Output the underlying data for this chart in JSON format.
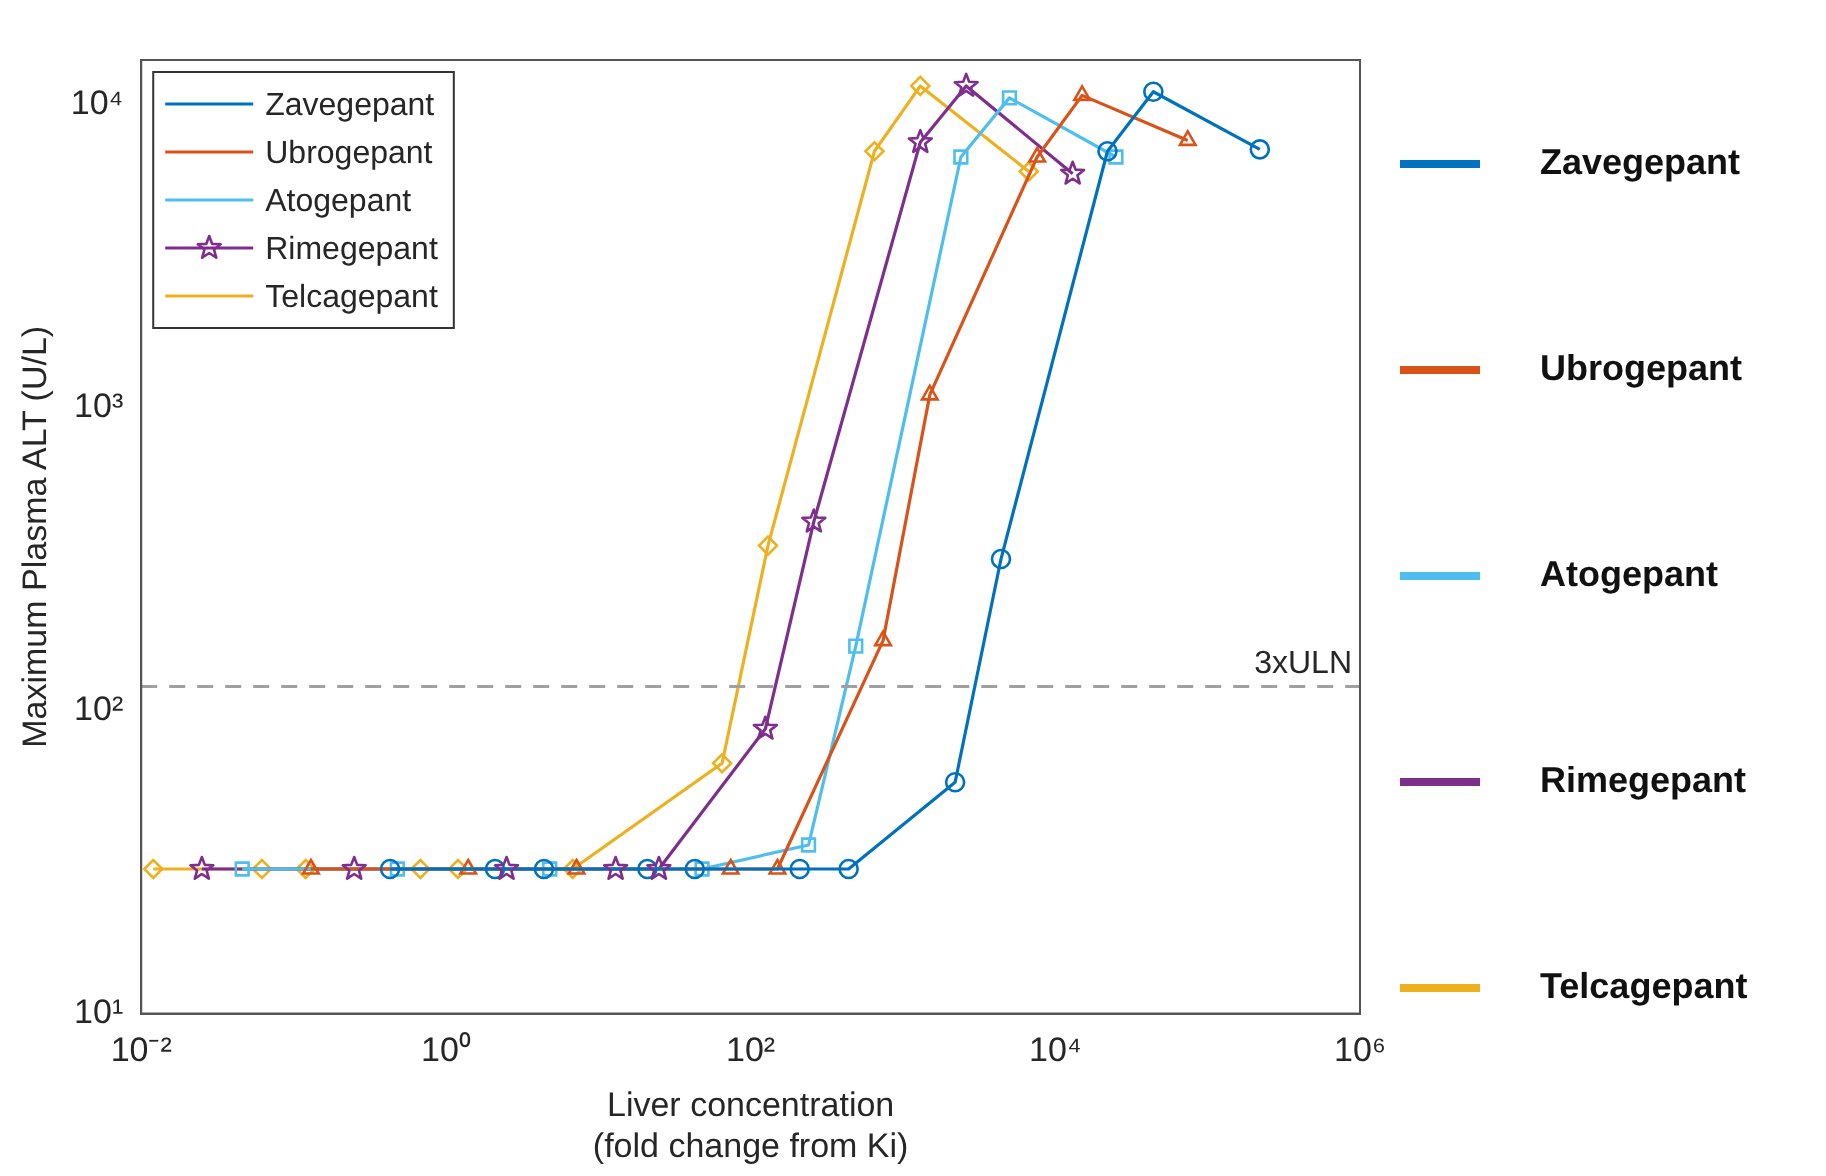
{
  "chart_data": {
    "type": "line",
    "xlabel": "Liver concentration\n(fold change from Ki)",
    "ylabel": "Maximum Plasma ALT (U/L)",
    "log": "xy",
    "grid": false,
    "legend": "top left",
    "line_style": "solid",
    "xlim": [
      0.01,
      1000000
    ],
    "xticks": [
      {
        "value": 0.01,
        "label": "10⁻²"
      },
      {
        "value": 1,
        "label": "10⁰"
      },
      {
        "value": 100,
        "label": "10²"
      },
      {
        "value": 10000,
        "label": "10⁴"
      },
      {
        "value": 1000000,
        "label": "10⁶"
      }
    ],
    "ylim": [
      10,
      14000
    ],
    "yticks": [
      {
        "value": 10,
        "label": "10¹"
      },
      {
        "value": 100,
        "label": "10²"
      },
      {
        "value": 1000,
        "label": "10³"
      },
      {
        "value": 10000,
        "label": "10⁴"
      }
    ],
    "ref_lines": [
      {
        "axis": "y",
        "value": 120,
        "label": "3xULN",
        "color": "#a0a0a0",
        "line_style": "dashed"
      }
    ],
    "series": [
      {
        "name": "Zavegepant",
        "color": "#0072bd",
        "marker": "circle",
        "x": [
          0.43,
          2.1,
          4.4,
          21,
          43,
          210,
          440,
          2200,
          4400,
          22000,
          44000,
          220000
        ],
        "values": [
          30,
          30,
          30,
          30,
          30,
          30,
          30,
          58,
          316,
          7000,
          11000,
          7100
        ]
      },
      {
        "name": "Ubrogepant",
        "color": "#d95319",
        "marker": "triangle",
        "x": [
          0.13,
          1.4,
          7.2,
          74,
          150,
          740,
          1500,
          7600,
          15000,
          74000
        ],
        "values": [
          30,
          30,
          30,
          30,
          30,
          170,
          1100,
          6700,
          10700,
          7600
        ]
      },
      {
        "name": "Atogepant",
        "color": "#4dbeee",
        "marker": "square",
        "x": [
          0.046,
          0.48,
          4.8,
          48,
          240,
          490,
          2400,
          5000,
          25000
        ],
        "values": [
          30,
          30,
          30,
          30,
          36,
          163,
          6700,
          10500,
          6700
        ]
      },
      {
        "name": "Rimegepant",
        "color": "#7e2f8e",
        "marker": "star",
        "x": [
          0.025,
          0.25,
          2.5,
          13,
          25,
          125,
          260,
          1300,
          2600,
          13000
        ],
        "values": [
          30,
          30,
          30,
          30,
          30,
          87,
          420,
          7500,
          11500,
          5900
        ]
      },
      {
        "name": "Telcagepant",
        "color": "#edb120",
        "marker": "diamond",
        "x": [
          0.012,
          0.062,
          0.12,
          0.68,
          1.2,
          6.8,
          65,
          130,
          650,
          1300,
          6700
        ],
        "values": [
          30,
          30,
          30,
          30,
          30,
          30,
          67,
          350,
          7000,
          11500,
          6000
        ]
      }
    ]
  }
}
